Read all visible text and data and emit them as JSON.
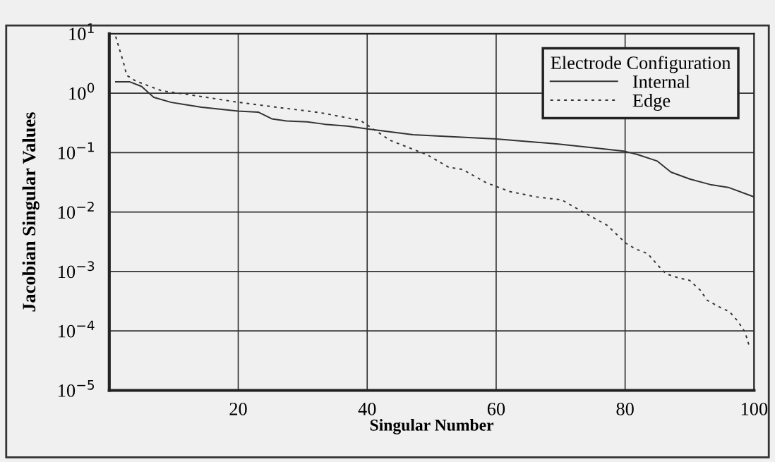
{
  "chart_data": {
    "type": "line",
    "xlabel": "Singular Number",
    "ylabel": "Jacobian Singular Values",
    "legend_title": "Electrode Configuration",
    "log": "y",
    "grid": true,
    "legend": "top right",
    "marker": "none",
    "xlim": [
      0,
      100
    ],
    "xticks": [
      20,
      40,
      60,
      80,
      100
    ],
    "ylim": [
      1e-05,
      10
    ],
    "yticks": [
      {
        "value": 1e-05,
        "label": "10$^{−5}$"
      },
      {
        "value": 0.0001,
        "label": "10$^{−4}$"
      },
      {
        "value": 0.001,
        "label": "10$^{−3}$"
      },
      {
        "value": 0.01,
        "label": "10$^{−2}$"
      },
      {
        "value": 0.1,
        "label": "10$^{−1}$"
      },
      {
        "value": 1,
        "label": "10$^{0}$"
      },
      {
        "value": 10,
        "label": "10$^{1}$"
      }
    ],
    "series": [
      {
        "name": "Internal",
        "color": "#333333",
        "line_style": "solid",
        "x": [
          1,
          3.2,
          5,
          6.9,
          9.6,
          14.3,
          20,
          23.1,
          25.2,
          27.5,
          30.7,
          33.4,
          36.9,
          40,
          47.1,
          60,
          69.4,
          75.3,
          80,
          81.9,
          85,
          87.1,
          90,
          93.2,
          96,
          100
        ],
        "values": [
          1.55,
          1.55,
          1.3,
          0.85,
          0.7,
          0.58,
          0.5,
          0.48,
          0.37,
          0.34,
          0.33,
          0.3,
          0.28,
          0.25,
          0.2,
          0.17,
          0.14,
          0.12,
          0.105,
          0.093,
          0.072,
          0.047,
          0.036,
          0.029,
          0.026,
          0.018
        ]
      },
      {
        "name": "Edge",
        "color": "#333333",
        "line_style": "dashed",
        "x": [
          1,
          1.6,
          2.2,
          2.7,
          4.1,
          8.1,
          13.9,
          20.1,
          26,
          32.7,
          38.9,
          43.6,
          49.3,
          52.6,
          54.8,
          58.5,
          62.2,
          66.2,
          70.2,
          71.9,
          75.3,
          77.2,
          78.6,
          80.1,
          81.6,
          83.5,
          85,
          86.3,
          88.3,
          90,
          91.7,
          92.7,
          94.4,
          96.2,
          97.5,
          98.6,
          99.2
        ],
        "values": [
          9,
          5.4,
          3.3,
          2,
          1.6,
          1.1,
          0.89,
          0.7,
          0.58,
          0.47,
          0.35,
          0.16,
          0.092,
          0.057,
          0.052,
          0.031,
          0.022,
          0.018,
          0.016,
          0.0125,
          0.0078,
          0.006,
          0.0043,
          0.003,
          0.0024,
          0.002,
          0.0013,
          0.00092,
          0.00078,
          0.00071,
          0.00048,
          0.00033,
          0.00026,
          0.00021,
          0.000145,
          9.5e-05,
          5.8e-05
        ]
      }
    ]
  }
}
